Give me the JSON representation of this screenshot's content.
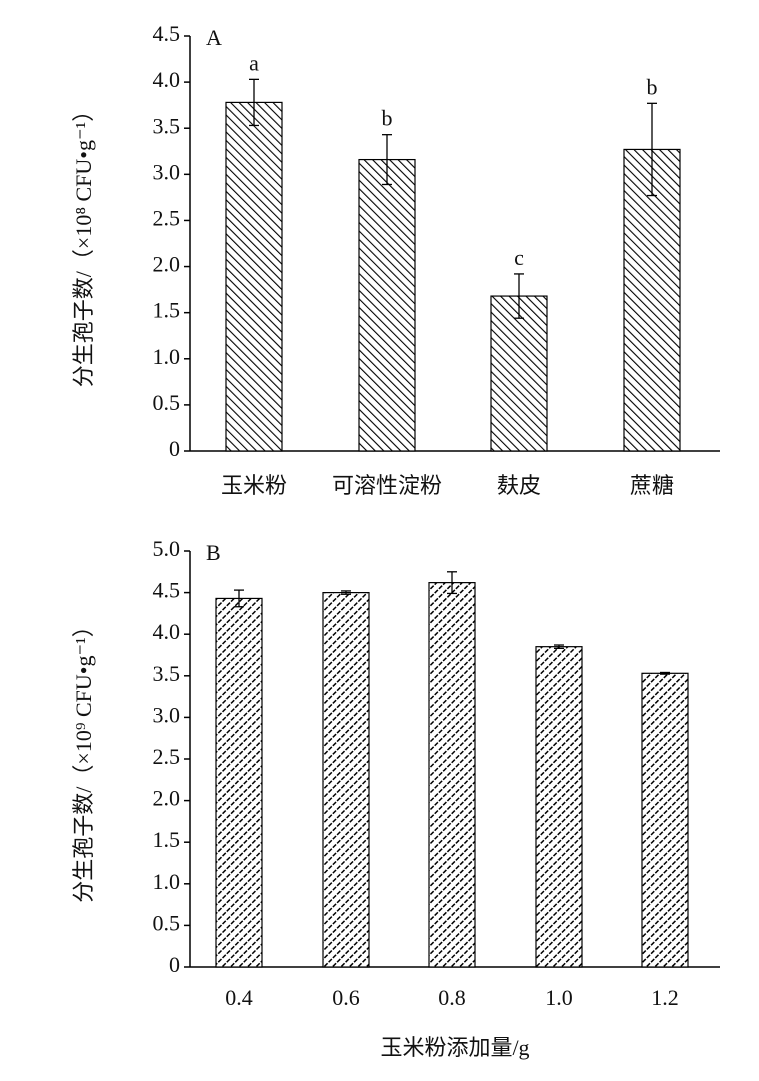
{
  "chart_data": [
    {
      "type": "bar",
      "panel": "A",
      "ylabel": "分生孢子数/（×10⁸ CFU•g⁻¹）",
      "categories": [
        "玉米粉",
        "可溶性淀粉",
        "麸皮",
        "蔗糖"
      ],
      "values": [
        3.78,
        3.16,
        1.68,
        3.27
      ],
      "errors": [
        0.25,
        0.27,
        0.24,
        0.5
      ],
      "annotations": [
        "a",
        "b",
        "c",
        "b"
      ],
      "hatch": "back",
      "ylim": [
        0,
        4.5
      ],
      "yticks": [
        0,
        0.5,
        {
          "value": 1,
          "label": "1.0"
        },
        1.5,
        {
          "value": 2,
          "label": "2.0"
        },
        2.5,
        {
          "value": 3,
          "label": "3.0"
        },
        3.5,
        {
          "value": 4,
          "label": "4.0"
        },
        4.5
      ]
    },
    {
      "type": "bar",
      "panel": "B",
      "ylabel": "分生孢子数/（×10⁹ CFU•g⁻¹）",
      "xlabel": "玉米粉添加量/g",
      "categories": [
        "0.4",
        "0.6",
        "0.8",
        "1.0",
        "1.2"
      ],
      "values": [
        4.43,
        4.5,
        4.62,
        3.85,
        3.53
      ],
      "errors": [
        0.1,
        0.02,
        0.13,
        0.02,
        0.01
      ],
      "hatch": "forward",
      "ylim": [
        0,
        5
      ],
      "yticks": [
        0,
        0.5,
        {
          "value": 1,
          "label": "1.0"
        },
        1.5,
        {
          "value": 2,
          "label": "2.0"
        },
        2.5,
        {
          "value": 3,
          "label": "3.0"
        },
        3.5,
        {
          "value": 4,
          "label": "4.0"
        },
        4.5,
        {
          "value": 5,
          "label": "5.0"
        }
      ]
    }
  ]
}
